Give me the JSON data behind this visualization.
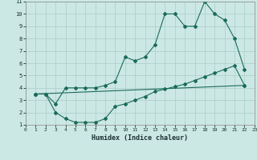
{
  "xlabel": "Humidex (Indice chaleur)",
  "xlim": [
    0,
    23
  ],
  "ylim": [
    1,
    11
  ],
  "xticks": [
    0,
    1,
    2,
    3,
    4,
    5,
    6,
    7,
    8,
    9,
    10,
    11,
    12,
    13,
    14,
    15,
    16,
    17,
    18,
    19,
    20,
    21,
    22,
    23
  ],
  "yticks": [
    1,
    2,
    3,
    4,
    5,
    6,
    7,
    8,
    9,
    10,
    11
  ],
  "bg_color": "#cce8e4",
  "grid_color": "#aaccc8",
  "line_color": "#1a6b5a",
  "line1_x": [
    1,
    2,
    3,
    4,
    5,
    6,
    7,
    8,
    9,
    10,
    11,
    12,
    13,
    14,
    15,
    16,
    17,
    18,
    19,
    20,
    21,
    22
  ],
  "line1_y": [
    3.5,
    3.5,
    2.7,
    4.0,
    4.0,
    4.0,
    4.0,
    4.2,
    4.5,
    6.5,
    6.2,
    6.5,
    7.5,
    10.0,
    10.0,
    9.0,
    9.0,
    11.0,
    10.0,
    9.5,
    8.0,
    5.5
  ],
  "line2_x": [
    1,
    2,
    3,
    4,
    5,
    6,
    7,
    8,
    9,
    10,
    11,
    12,
    13,
    14,
    15,
    16,
    17,
    18,
    19,
    20,
    21,
    22
  ],
  "line2_y": [
    3.5,
    3.5,
    2.0,
    1.5,
    1.2,
    1.2,
    1.2,
    1.5,
    2.5,
    2.7,
    3.0,
    3.3,
    3.7,
    3.9,
    4.1,
    4.3,
    4.6,
    4.9,
    5.2,
    5.5,
    5.8,
    4.2
  ],
  "line3_x": [
    1,
    22
  ],
  "line3_y": [
    3.5,
    4.2
  ]
}
